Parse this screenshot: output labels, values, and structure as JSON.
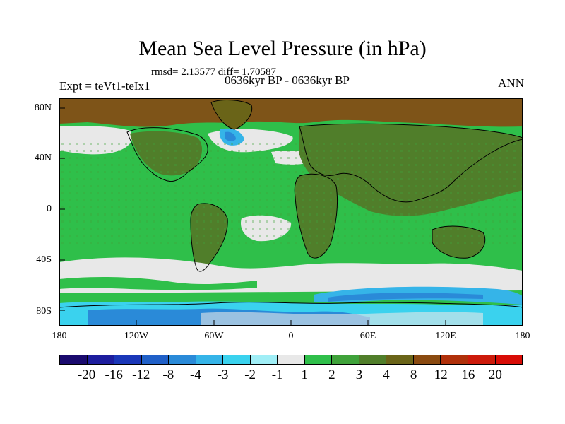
{
  "title": "Mean Sea Level Pressure (in hPa)",
  "stats": "rmsd= 2.13577 diff= 1.70587",
  "experiment": "Expt = teVt1-teIx1",
  "period": "0636kyr BP - 0636kyr BP",
  "season": "ANN",
  "lat_labels": [
    "80N",
    "40N",
    "0",
    "40S",
    "80S"
  ],
  "lon_labels": [
    "180",
    "120W",
    "60W",
    "0",
    "60E",
    "120E",
    "180"
  ],
  "colorbar": {
    "labels": [
      "-20",
      "-16",
      "-12",
      "-8",
      "-4",
      "-3",
      "-2",
      "-1",
      "1",
      "2",
      "3",
      "4",
      "8",
      "12",
      "16",
      "20"
    ],
    "colors": [
      "#1a0a6e",
      "#1d1d9e",
      "#1a37b8",
      "#2060c8",
      "#2a8ad8",
      "#35b4e8",
      "#3ad2ee",
      "#a0eef6",
      "#e8e8e8",
      "#2fbf4a",
      "#3fa23a",
      "#507e2a",
      "#6a6418",
      "#8a4a10",
      "#b0300a",
      "#cc1a0a",
      "#d80c06"
    ]
  },
  "colors": {
    "ocean_green": "#2fbf4a",
    "land_olive": "#507e2a",
    "brown": "#7e5418",
    "neutral": "#e8e8e8",
    "cyan": "#3ad2ee",
    "light_blue": "#2a8ad8"
  }
}
